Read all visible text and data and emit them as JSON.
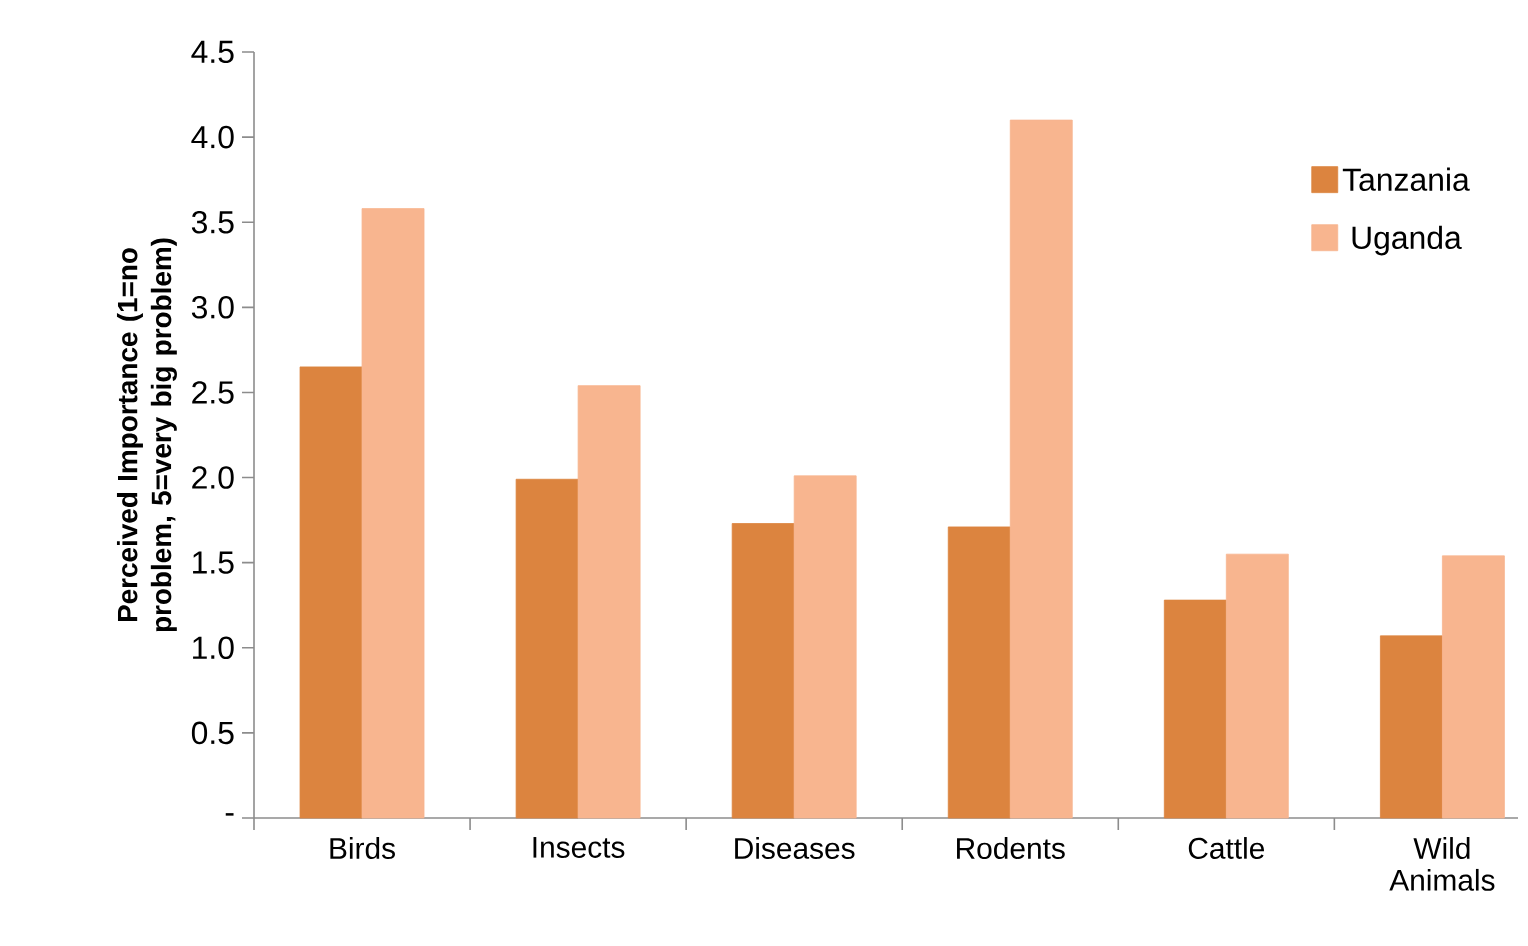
{
  "chart_data": {
    "type": "bar",
    "ylabel": "Perceived Importance (1=no problem, 5=very big problem)",
    "categories": [
      "Birds",
      "Insects",
      "Diseases",
      "Rodents",
      "Cattle",
      "Wild Animals"
    ],
    "series": [
      {
        "name": "Tanzania",
        "color": "#dc843f",
        "values": [
          2.65,
          1.99,
          1.73,
          1.71,
          1.28,
          1.07
        ]
      },
      {
        "name": "Uganda",
        "color": "#f8b58f",
        "values": [
          3.58,
          2.54,
          2.01,
          4.1,
          1.55,
          1.54
        ]
      }
    ],
    "ylim": [
      0,
      4.5
    ],
    "yticks": [
      {
        "value": 0,
        "label": "-"
      },
      {
        "value": 0.5,
        "label": "0.5"
      },
      {
        "value": 1,
        "label": "1.0"
      },
      {
        "value": 1.5,
        "label": "1.5"
      },
      {
        "value": 2,
        "label": "2.0"
      },
      {
        "value": 2.5,
        "label": "2.5"
      },
      {
        "value": 3,
        "label": "3.0"
      },
      {
        "value": 3.5,
        "label": "3.5"
      },
      {
        "value": 4,
        "label": "4.0"
      },
      {
        "value": 4.5,
        "label": "4.5"
      }
    ],
    "legend": "top right",
    "grid": false
  }
}
